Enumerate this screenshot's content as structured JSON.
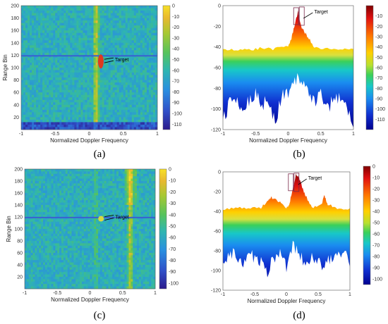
{
  "figure": {
    "captions": [
      "(a)",
      "(b)",
      "(c)",
      "(d)"
    ]
  },
  "colormap": {
    "stops": [
      "#2b1a8c",
      "#3050c8",
      "#2a8fe0",
      "#2fb6b0",
      "#56c35c",
      "#a8c832",
      "#e8b830",
      "#f7e026"
    ],
    "spectrum_stops": [
      "#7f0000",
      "#e01010",
      "#ff7a00",
      "#ffd000",
      "#b8e030",
      "#3ad05a",
      "#18c8c8",
      "#1a8cf0",
      "#1030d0",
      "#00008f"
    ]
  },
  "chart_data": [
    {
      "id": "a",
      "type": "heatmap",
      "title": "",
      "xlabel": "Normalized Doppler Frequency",
      "ylabel": "Range Bin",
      "xlim": [
        -1,
        1
      ],
      "ylim": [
        0,
        200
      ],
      "xticks": [
        "-1",
        "-0.5",
        "0",
        "0.5",
        "1"
      ],
      "yticks": [
        "20",
        "40",
        "60",
        "80",
        "100",
        "120",
        "140",
        "160",
        "180",
        "200"
      ],
      "colorbar_ticks": [
        "0",
        "-10",
        "-20",
        "-30",
        "-40",
        "-50",
        "-60",
        "-70",
        "-80",
        "-90",
        "-100",
        "-110"
      ],
      "clim": [
        -115,
        0
      ],
      "features": {
        "clutter_ridge_doppler": 0.1,
        "target_doppler": 0.17,
        "target_range_bin": 110,
        "horizontal_line_range_bin": 119
      },
      "annotation": "Target"
    },
    {
      "id": "b",
      "type": "area",
      "title": "",
      "xlabel": "Normalized Doppler Frequency",
      "ylabel": "",
      "xlim": [
        -1,
        1
      ],
      "ylim": [
        -120,
        0
      ],
      "xticks": [
        "-1",
        "-0.5",
        "0",
        "0.5",
        "1"
      ],
      "yticks": [
        "0",
        "-20",
        "-40",
        "-60",
        "-80",
        "-100",
        "-120"
      ],
      "colorbar_ticks": [
        "-10",
        "-20",
        "-30",
        "-40",
        "-50",
        "-60",
        "-70",
        "-80",
        "-90",
        "-100",
        "-110"
      ],
      "clim": [
        -120,
        0
      ],
      "upper_envelope": {
        "x": [
          -1,
          -0.8,
          -0.6,
          -0.4,
          -0.2,
          0,
          0.05,
          0.1,
          0.15,
          0.2,
          0.25,
          0.3,
          0.4,
          0.6,
          0.8,
          1
        ],
        "y": [
          -43,
          -42,
          -43,
          -41,
          -42,
          -39,
          -32,
          -18,
          -6,
          -20,
          -26,
          -30,
          -41,
          -42,
          -43,
          -42
        ]
      },
      "lower_envelope": {
        "x": [
          -1,
          -0.9,
          -0.8,
          -0.7,
          -0.6,
          -0.5,
          -0.4,
          -0.3,
          -0.2,
          -0.1,
          0,
          0.1,
          0.2,
          0.3,
          0.4,
          0.5,
          0.6,
          0.7,
          0.8,
          0.9,
          1
        ],
        "y": [
          -110,
          -95,
          -88,
          -104,
          -92,
          -86,
          -96,
          -90,
          -112,
          -88,
          -84,
          -70,
          -74,
          -82,
          -94,
          -87,
          -100,
          -91,
          -89,
          -96,
          -115
        ]
      },
      "annotation": "Target",
      "highlight_x": [
        0.17,
        0.29
      ]
    },
    {
      "id": "c",
      "type": "heatmap",
      "title": "",
      "xlabel": "Normalized Doppler Frequency",
      "ylabel": "Range Bin",
      "xlim": [
        -1,
        1
      ],
      "ylim": [
        0,
        200
      ],
      "xticks": [
        "-1",
        "-0.5",
        "0",
        "0.5",
        "1"
      ],
      "yticks": [
        "20",
        "40",
        "60",
        "80",
        "100",
        "120",
        "140",
        "160",
        "180",
        "200"
      ],
      "colorbar_ticks": [
        "0",
        "-10",
        "-20",
        "-30",
        "-40",
        "-50",
        "-60",
        "-70",
        "-80",
        "-90",
        "-100"
      ],
      "clim": [
        -105,
        0
      ],
      "features": {
        "clutter_ridge_doppler": 0.62,
        "target_doppler": 0.17,
        "target_range_bin": 117,
        "horizontal_line_range_bin": 119,
        "faint_ridge_doppler": 0.1
      },
      "annotation": "Target"
    },
    {
      "id": "d",
      "type": "area",
      "title": "",
      "xlabel": "Normalized Doppler Frequency",
      "ylabel": "",
      "xlim": [
        -1,
        1
      ],
      "ylim": [
        -120,
        0
      ],
      "xticks": [
        "-1",
        "-0.5",
        "0",
        "0.5",
        "1"
      ],
      "yticks": [
        "0",
        "-20",
        "-40",
        "-60",
        "-80",
        "-100",
        "-120"
      ],
      "colorbar_ticks": [
        "0",
        "-10",
        "-20",
        "-30",
        "-40",
        "-50",
        "-60",
        "-70",
        "-80",
        "-90",
        "-100"
      ],
      "clim": [
        -105,
        0
      ],
      "upper_envelope": {
        "x": [
          -1,
          -0.8,
          -0.6,
          -0.4,
          -0.3,
          -0.25,
          -0.2,
          -0.1,
          0,
          0.05,
          0.1,
          0.15,
          0.2,
          0.25,
          0.3,
          0.4,
          0.55,
          0.6,
          0.65,
          0.8,
          1
        ],
        "y": [
          -38,
          -37,
          -36,
          -37,
          -29,
          -26,
          -28,
          -30,
          -37,
          -32,
          -16,
          -3,
          -6,
          -16,
          -24,
          -36,
          -33,
          -24,
          -33,
          -37,
          -37
        ]
      },
      "lower_envelope": {
        "x": [
          -1,
          -0.9,
          -0.8,
          -0.7,
          -0.6,
          -0.5,
          -0.4,
          -0.3,
          -0.2,
          -0.1,
          0,
          0.1,
          0.2,
          0.3,
          0.4,
          0.5,
          0.6,
          0.7,
          0.8,
          0.9,
          1
        ],
        "y": [
          -92,
          -85,
          -83,
          -96,
          -80,
          -88,
          -93,
          -104,
          -86,
          -82,
          -99,
          -74,
          -81,
          -94,
          -86,
          -92,
          -98,
          -84,
          -88,
          -83,
          -90
        ]
      },
      "annotation": "Target",
      "highlight_x": [
        0.12,
        0.23
      ]
    }
  ]
}
